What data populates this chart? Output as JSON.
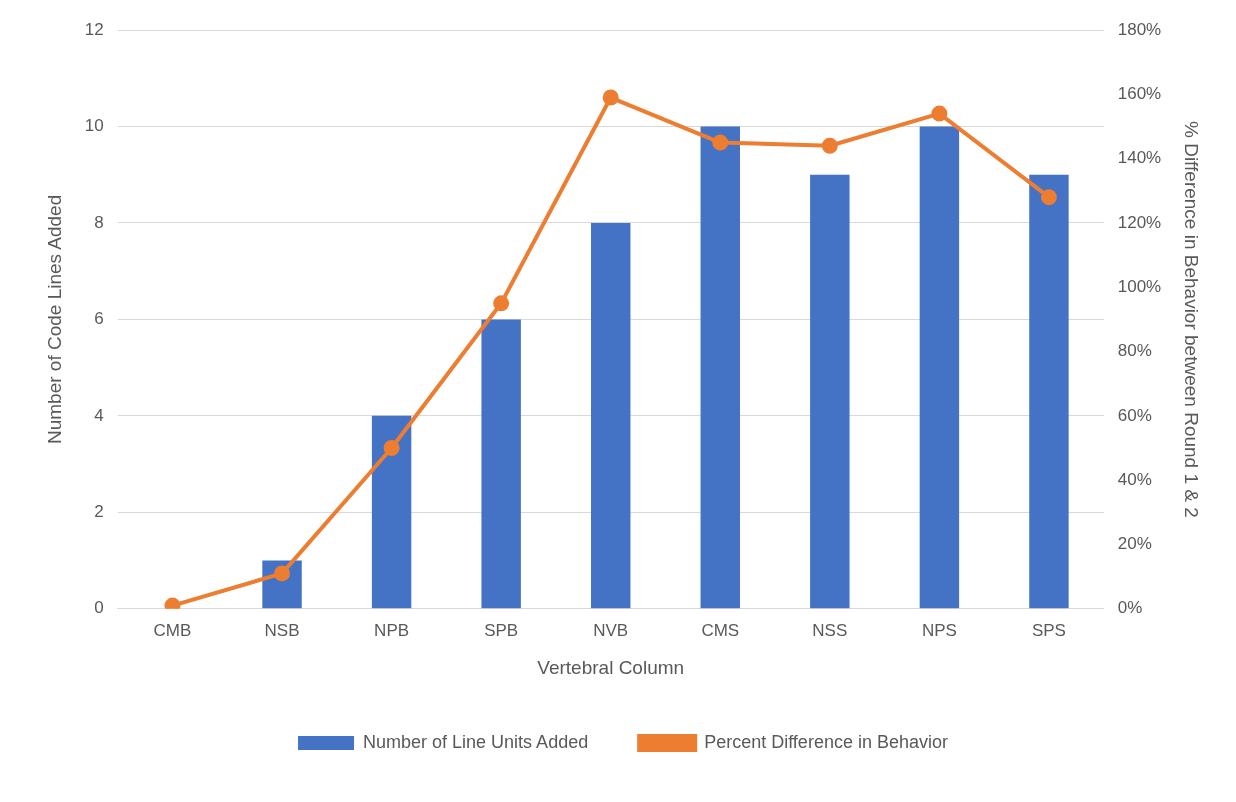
{
  "chart_data": {
    "type": "bar",
    "xlabel": "Vertebral Column",
    "ylabel": "Number of Code Lines Added",
    "y2label": "% Difference in Behavior between Round 1 & 2",
    "categories": [
      "CMB",
      "NSB",
      "NPB",
      "SPB",
      "NVB",
      "CMS",
      "NSS",
      "NPS",
      "SPS"
    ],
    "series": [
      {
        "name": "Number of Line Units Added",
        "color": "#4472c4",
        "values": [
          0,
          1,
          4,
          6,
          8,
          10,
          9,
          10,
          9
        ]
      },
      {
        "name": "Percent Difference in Behavior",
        "type": "line",
        "axis": "y2",
        "color": "#ed7d31",
        "marker": "circle",
        "values": [
          1,
          11,
          50,
          95,
          159,
          145,
          144,
          154,
          128
        ]
      }
    ],
    "ylim": [
      0,
      12
    ],
    "yticks": [
      0,
      2,
      4,
      6,
      8,
      10,
      12
    ],
    "y2lim": [
      0,
      180
    ],
    "y2ticks": [
      {
        "value": 0,
        "label": "0%"
      },
      {
        "value": 20,
        "label": "20%"
      },
      {
        "value": 40,
        "label": "40%"
      },
      {
        "value": 60,
        "label": "60%"
      },
      {
        "value": 80,
        "label": "80%"
      },
      {
        "value": 100,
        "label": "100%"
      },
      {
        "value": 120,
        "label": "120%"
      },
      {
        "value": 140,
        "label": "140%"
      },
      {
        "value": 160,
        "label": "160%"
      },
      {
        "value": 180,
        "label": "180%"
      }
    ],
    "grid": "y",
    "legend": "bottom"
  }
}
